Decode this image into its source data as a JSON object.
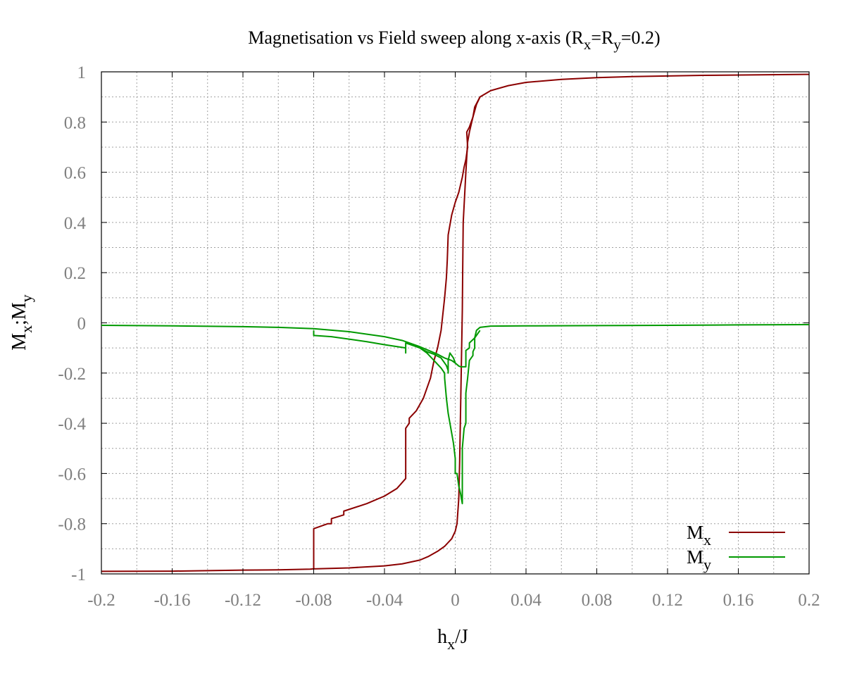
{
  "chart_data": {
    "type": "line",
    "title": {
      "pre": "Magnetisation vs Field sweep along x-axis (R",
      "sub1": "x",
      "mid": "=R",
      "sub2": "y",
      "post": "=0.2)"
    },
    "xlabel": {
      "main": "h",
      "sub": "x",
      "post": "/J"
    },
    "ylabel": {
      "m1": "M",
      "s1": "x",
      "sep": ";M",
      "s2": "y"
    },
    "xlim": [
      -0.2,
      0.2
    ],
    "ylim": [
      -1,
      1
    ],
    "xticks": [
      -0.2,
      -0.16,
      -0.12,
      -0.08,
      -0.04,
      0,
      0.04,
      0.08,
      0.12,
      0.16,
      0.2
    ],
    "xtick_labels": [
      "-0.2",
      "-0.16",
      "-0.12",
      "-0.08",
      "-0.04",
      "0",
      "0.04",
      "0.08",
      "0.12",
      "0.16",
      "0.2"
    ],
    "yticks": [
      -1,
      -0.8,
      -0.6,
      -0.4,
      -0.2,
      0,
      0.2,
      0.4,
      0.6,
      0.8,
      1
    ],
    "ytick_labels": [
      "-1",
      "-0.8",
      "-0.6",
      "-0.4",
      "-0.2",
      "0",
      "0.2",
      "0.4",
      "0.6",
      "0.8",
      "1"
    ],
    "grid": true,
    "legend_position": "bottom-right",
    "series": [
      {
        "name": {
          "main": "M",
          "sub": "x"
        },
        "color": "#8b0000",
        "segments": [
          [
            [
              -0.2,
              -0.99
            ],
            [
              -0.16,
              -0.989
            ],
            [
              -0.12,
              -0.985
            ],
            [
              -0.1,
              -0.984
            ],
            [
              -0.082,
              -0.981
            ],
            [
              -0.08,
              -0.98
            ],
            [
              -0.06,
              -0.976
            ],
            [
              -0.04,
              -0.968
            ],
            [
              -0.03,
              -0.96
            ],
            [
              -0.02,
              -0.945
            ],
            [
              -0.015,
              -0.93
            ],
            [
              -0.01,
              -0.91
            ],
            [
              -0.006,
              -0.89
            ],
            [
              -0.002,
              -0.86
            ],
            [
              0,
              -0.83
            ],
            [
              0.001,
              -0.8
            ],
            [
              0.002,
              -0.7
            ],
            [
              0.0025,
              -0.55
            ],
            [
              0.003,
              -0.35
            ],
            [
              0.0035,
              -0.15
            ],
            [
              0.004,
              0.05
            ],
            [
              0.0042,
              0.2
            ],
            [
              0.0045,
              0.4
            ],
            [
              0.006,
              0.6
            ],
            [
              0.007,
              0.72
            ],
            [
              0.008,
              0.76
            ],
            [
              0.009,
              0.79
            ],
            [
              0.01,
              0.82
            ],
            [
              0.011,
              0.86
            ],
            [
              0.014,
              0.9
            ],
            [
              0.02,
              0.925
            ],
            [
              0.03,
              0.945
            ],
            [
              0.04,
              0.958
            ],
            [
              0.06,
              0.97
            ],
            [
              0.08,
              0.977
            ],
            [
              0.1,
              0.981
            ],
            [
              0.14,
              0.986
            ],
            [
              0.2,
              0.99
            ]
          ],
          [
            [
              -0.08,
              -0.98
            ],
            [
              -0.08,
              -0.82
            ],
            [
              -0.072,
              -0.8
            ],
            [
              -0.07,
              -0.8
            ],
            [
              -0.07,
              -0.78
            ],
            [
              -0.063,
              -0.765
            ],
            [
              -0.063,
              -0.75
            ],
            [
              -0.05,
              -0.72
            ],
            [
              -0.04,
              -0.69
            ],
            [
              -0.033,
              -0.66
            ],
            [
              -0.028,
              -0.62
            ],
            [
              -0.028,
              -0.42
            ],
            [
              -0.026,
              -0.4
            ],
            [
              -0.026,
              -0.38
            ],
            [
              -0.022,
              -0.35
            ],
            [
              -0.018,
              -0.3
            ],
            [
              -0.016,
              -0.26
            ],
            [
              -0.014,
              -0.22
            ],
            [
              -0.012,
              -0.15
            ],
            [
              -0.01,
              -0.1
            ],
            [
              -0.008,
              -0.03
            ],
            [
              -0.006,
              0.1
            ],
            [
              -0.005,
              0.18
            ],
            [
              -0.0045,
              0.25
            ],
            [
              -0.004,
              0.35
            ],
            [
              -0.002,
              0.43
            ],
            [
              0,
              0.48
            ],
            [
              0.002,
              0.52
            ],
            [
              0.004,
              0.58
            ],
            [
              0.005,
              0.62
            ],
            [
              0.006,
              0.65
            ],
            [
              0.007,
              0.7
            ],
            [
              0.0065,
              0.76
            ],
            [
              0.008,
              0.78
            ],
            [
              0.01,
              0.82
            ],
            [
              0.012,
              0.87
            ],
            [
              0.014,
              0.9
            ]
          ]
        ]
      },
      {
        "name": {
          "main": "M",
          "sub": "y"
        },
        "color": "#009900",
        "segments": [
          [
            [
              -0.2,
              -0.01
            ],
            [
              -0.16,
              -0.012
            ],
            [
              -0.12,
              -0.015
            ],
            [
              -0.1,
              -0.018
            ],
            [
              -0.08,
              -0.023
            ],
            [
              -0.06,
              -0.035
            ],
            [
              -0.04,
              -0.055
            ],
            [
              -0.03,
              -0.07
            ],
            [
              -0.02,
              -0.095
            ],
            [
              -0.015,
              -0.11
            ],
            [
              -0.01,
              -0.125
            ],
            [
              -0.006,
              -0.14
            ],
            [
              -0.004,
              -0.145
            ],
            [
              -0.002,
              -0.15
            ],
            [
              0,
              -0.16
            ],
            [
              0.002,
              -0.172
            ],
            [
              0.003,
              -0.175
            ],
            [
              0.006,
              -0.175
            ],
            [
              0.006,
              -0.11
            ],
            [
              0.008,
              -0.1
            ],
            [
              0.008,
              -0.08
            ],
            [
              0.011,
              -0.06
            ],
            [
              0.012,
              -0.03
            ],
            [
              0.014,
              -0.018
            ],
            [
              0.02,
              -0.013
            ],
            [
              0.04,
              -0.012
            ],
            [
              0.08,
              -0.011
            ],
            [
              0.12,
              -0.01
            ],
            [
              0.16,
              -0.008
            ],
            [
              0.2,
              -0.007
            ]
          ],
          [
            [
              -0.08,
              -0.03
            ],
            [
              -0.08,
              -0.05
            ],
            [
              -0.07,
              -0.055
            ],
            [
              -0.06,
              -0.065
            ],
            [
              -0.05,
              -0.075
            ],
            [
              -0.04,
              -0.087
            ],
            [
              -0.028,
              -0.1
            ],
            [
              -0.028,
              -0.12
            ],
            [
              -0.028,
              -0.08
            ],
            [
              -0.022,
              -0.095
            ],
            [
              -0.02,
              -0.1
            ],
            [
              -0.018,
              -0.11
            ],
            [
              -0.016,
              -0.12
            ],
            [
              -0.014,
              -0.135
            ],
            [
              -0.012,
              -0.15
            ],
            [
              -0.01,
              -0.165
            ],
            [
              -0.008,
              -0.18
            ],
            [
              -0.006,
              -0.2
            ],
            [
              -0.006,
              -0.22
            ],
            [
              -0.005,
              -0.3
            ],
            [
              -0.004,
              -0.36
            ],
            [
              -0.003,
              -0.4
            ],
            [
              -0.002,
              -0.44
            ],
            [
              -0.001,
              -0.48
            ],
            [
              0,
              -0.54
            ],
            [
              0,
              -0.6
            ],
            [
              0.001,
              -0.6
            ],
            [
              0.002,
              -0.65
            ],
            [
              0.003,
              -0.68
            ],
            [
              0.004,
              -0.72
            ],
            [
              0.004,
              -0.55
            ],
            [
              0.004,
              -0.5
            ],
            [
              0.005,
              -0.42
            ],
            [
              0.006,
              -0.4
            ],
            [
              0.006,
              -0.28
            ],
            [
              0.007,
              -0.22
            ],
            [
              0.008,
              -0.15
            ],
            [
              0.01,
              -0.13
            ],
            [
              0.01,
              -0.115
            ],
            [
              0.011,
              -0.1
            ],
            [
              0.011,
              -0.06
            ],
            [
              0.013,
              -0.04
            ],
            [
              0.014,
              -0.03
            ]
          ],
          [
            [
              -0.02,
              -0.1
            ],
            [
              -0.016,
              -0.115
            ],
            [
              -0.012,
              -0.125
            ],
            [
              -0.008,
              -0.14
            ],
            [
              -0.005,
              -0.17
            ],
            [
              -0.004,
              -0.19
            ],
            [
              -0.004,
              -0.2
            ],
            [
              -0.004,
              -0.15
            ],
            [
              -0.003,
              -0.12
            ],
            [
              -0.001,
              -0.14
            ],
            [
              0,
              -0.16
            ]
          ]
        ]
      }
    ]
  }
}
